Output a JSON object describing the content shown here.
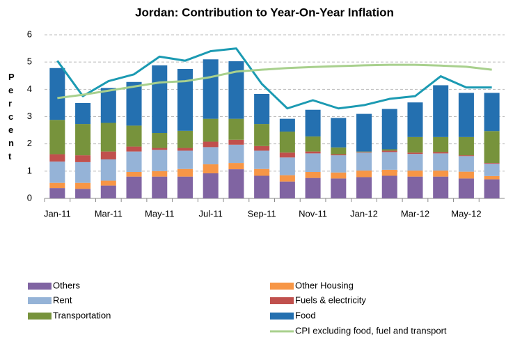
{
  "chart_data": {
    "type": "stacked_bar_line",
    "title": "Jordan: Contribution to Year-On-Year Inflation",
    "y_label": "Percent",
    "categories": [
      "Jan-11",
      null,
      "Mar-11",
      null,
      "May-11",
      null,
      "Jul-11",
      null,
      "Sep-11",
      null,
      "Nov-11",
      null,
      "Jan-12",
      null,
      "Mar-12",
      null,
      "May-12",
      null
    ],
    "ylim": [
      0,
      6
    ],
    "yticks": [
      0,
      1,
      2,
      3,
      4,
      5,
      6
    ],
    "grid": true,
    "series": [
      {
        "name": "Others",
        "color": "#8064a2",
        "values": [
          0.38,
          0.35,
          0.47,
          0.8,
          0.8,
          0.8,
          0.92,
          1.07,
          0.83,
          0.62,
          0.75,
          0.73,
          0.78,
          0.83,
          0.8,
          0.8,
          0.73,
          0.7
        ]
      },
      {
        "name": "Other Housing",
        "color": "#f79646",
        "values": [
          0.19,
          0.22,
          0.18,
          0.17,
          0.2,
          0.28,
          0.33,
          0.23,
          0.25,
          0.23,
          0.22,
          0.22,
          0.24,
          0.22,
          0.22,
          0.22,
          0.25,
          0.12
        ]
      },
      {
        "name": "Rent",
        "color": "#95b3d7",
        "values": [
          0.78,
          0.76,
          0.78,
          0.75,
          0.78,
          0.67,
          0.63,
          0.67,
          0.67,
          0.65,
          0.68,
          0.63,
          0.66,
          0.65,
          0.61,
          0.63,
          0.57,
          0.45
        ]
      },
      {
        "name": "Fuels & electricity",
        "color": "#c0504d",
        "values": [
          0.27,
          0.25,
          0.29,
          0.18,
          0.07,
          0.1,
          0.2,
          0.18,
          0.17,
          0.18,
          0.07,
          0.04,
          0.02,
          0.05,
          0.05,
          0.05,
          0.03,
          0.03
        ]
      },
      {
        "name": "Transportation",
        "color": "#77933c",
        "values": [
          1.26,
          1.15,
          1.05,
          0.77,
          0.55,
          0.63,
          0.84,
          0.77,
          0.81,
          0.77,
          0.55,
          0.25,
          0.02,
          0.05,
          0.57,
          0.55,
          0.67,
          1.17
        ]
      },
      {
        "name": "Food",
        "color": "#2470b0",
        "values": [
          1.9,
          0.77,
          1.28,
          1.6,
          2.48,
          2.27,
          2.18,
          2.11,
          1.1,
          0.47,
          0.98,
          1.08,
          1.38,
          1.48,
          1.27,
          1.9,
          1.62,
          1.4
        ]
      }
    ],
    "lines": [
      {
        "color": "#1b9ab2",
        "values": [
          5.05,
          3.75,
          4.3,
          4.55,
          5.2,
          5.05,
          5.4,
          5.5,
          4.2,
          3.3,
          3.6,
          3.3,
          3.42,
          3.65,
          3.75,
          4.48,
          4.07,
          4.07
        ]
      },
      {
        "name": "CPI excluding food, fuel and transport",
        "color": "#a8d08d",
        "values": [
          3.68,
          3.8,
          3.95,
          4.1,
          4.25,
          4.3,
          4.45,
          4.65,
          4.72,
          4.78,
          4.82,
          4.85,
          4.88,
          4.9,
          4.9,
          4.87,
          4.83,
          4.72
        ]
      }
    ]
  }
}
